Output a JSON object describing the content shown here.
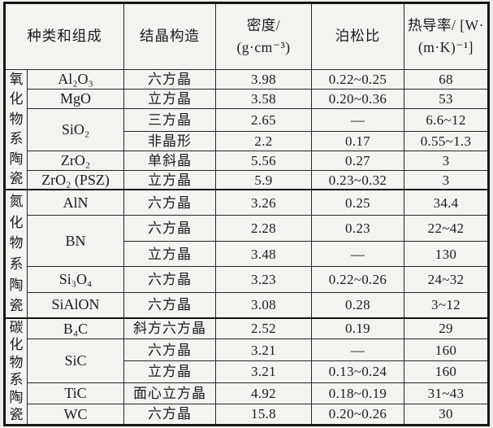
{
  "header": {
    "type_composition": "种类和组成",
    "crystal": "结晶构造",
    "density_line1": "密度/",
    "density_line2": "(g·cm⁻³)",
    "poisson": "泊松比",
    "thermal_line1": "热导率/ [W·",
    "thermal_line2": "(m·K)⁻¹]"
  },
  "categories": [
    "氧化物系陶瓷",
    "氮化物系陶瓷",
    "碳化物系陶瓷"
  ],
  "rows": [
    {
      "material": "Al₂O₃",
      "crystal": "六方晶",
      "density": "3.98",
      "poisson": "0.22~0.25",
      "thermal": "68"
    },
    {
      "material": "MgO",
      "crystal": "立方晶",
      "density": "3.58",
      "poisson": "0.20~0.36",
      "thermal": "53"
    },
    {
      "material": "SiO₂",
      "crystal": "三方晶",
      "density": "2.65",
      "poisson": "—",
      "thermal": "6.6~12"
    },
    {
      "crystal": "非晶形",
      "density": "2.2",
      "poisson": "0.17",
      "thermal": "0.55~1.3"
    },
    {
      "material": "ZrO₂",
      "crystal": "单斜晶",
      "density": "5.56",
      "poisson": "0.27",
      "thermal": "3"
    },
    {
      "material": "ZrO₂ (PSZ)",
      "crystal": "立方晶",
      "density": "5.9",
      "poisson": "0.23~0.32",
      "thermal": "3"
    },
    {
      "material": "AlN",
      "crystal": "六方晶",
      "density": "3.26",
      "poisson": "0.25",
      "thermal": "34.4"
    },
    {
      "material": "BN",
      "crystal": "六方晶",
      "density": "2.28",
      "poisson": "0.23",
      "thermal": "22~42"
    },
    {
      "crystal": "立方晶",
      "density": "3.48",
      "poisson": "—",
      "thermal": "130"
    },
    {
      "material": "Si₃O₄",
      "crystal": "六方晶",
      "density": "3.23",
      "poisson": "0.22~0.26",
      "thermal": "24~32"
    },
    {
      "material": "SiAlON",
      "crystal": "六方晶",
      "density": "3.08",
      "poisson": "0.28",
      "thermal": "3~12"
    },
    {
      "material": "B₄C",
      "crystal": "斜方六方晶",
      "density": "2.52",
      "poisson": "0.19",
      "thermal": "29"
    },
    {
      "material": "SiC",
      "crystal": "六方晶",
      "density": "3.21",
      "poisson": "—",
      "thermal": "160"
    },
    {
      "crystal": "立方晶",
      "density": "3.21",
      "poisson": "0.13~0.24",
      "thermal": "160"
    },
    {
      "material": "TiC",
      "crystal": "面心立方晶",
      "density": "4.92",
      "poisson": "0.18~0.19",
      "thermal": "31~43"
    },
    {
      "material": "WC",
      "crystal": "六方晶",
      "density": "15.8",
      "poisson": "0.20~0.26",
      "thermal": "30"
    }
  ],
  "colors": {
    "ink": "#1b1b1b",
    "paper": "#f4f3ef",
    "border": "#151515"
  }
}
